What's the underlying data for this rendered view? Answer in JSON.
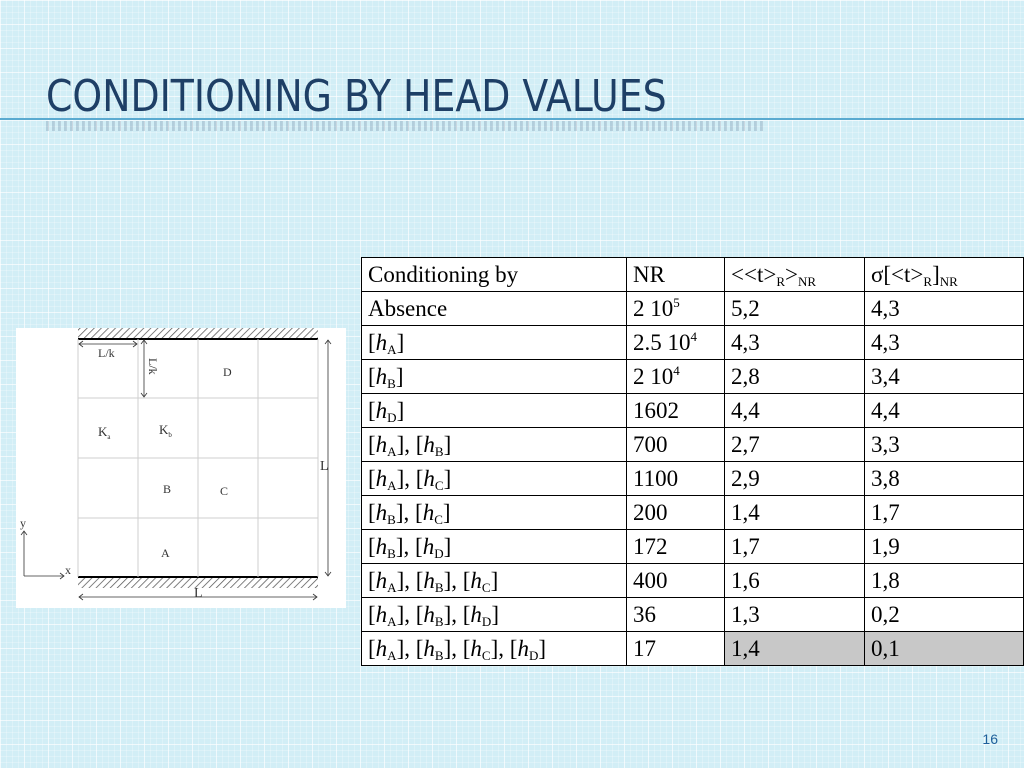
{
  "title": "Conditioning by head values",
  "page_number": "16",
  "figure": {
    "labels": {
      "top_width": "L/k",
      "side_width": "L/k",
      "height": "L",
      "width": "L",
      "region_D": "D",
      "region_C": "C",
      "region_B": "B",
      "region_A": "A",
      "ka_main": "K",
      "ka_sub": "a",
      "kb_main": "K",
      "kb_sub": "b",
      "axis_x": "x",
      "axis_y": "y"
    }
  },
  "table": {
    "header": {
      "col1": "Conditioning by",
      "col2": "NR",
      "col3_pre": "<<t>",
      "col3_sub1": "R",
      "col3_mid": ">",
      "col3_sub2": "NR",
      "col4_pre": "σ[<t>",
      "col4_sub1": "R",
      "col4_mid": "]",
      "col4_sub2": "NR"
    },
    "rows": [
      {
        "cond": [],
        "cond_text": "Absence",
        "nr_base": "2 10",
        "nr_exp": "5",
        "mean": "5,2",
        "sigma": "4,3"
      },
      {
        "cond": [
          "A"
        ],
        "nr_base": "2.5 10",
        "nr_exp": "4",
        "mean": "4,3",
        "sigma": "4,3"
      },
      {
        "cond": [
          "B"
        ],
        "nr_base": "2 10",
        "nr_exp": "4",
        "mean": "2,8",
        "sigma": "3,4"
      },
      {
        "cond": [
          "D"
        ],
        "nr_base": "1602",
        "nr_exp": "",
        "mean": "4,4",
        "sigma": "4,4"
      },
      {
        "cond": [
          "A",
          "B"
        ],
        "nr_base": "700",
        "nr_exp": "",
        "mean": "2,7",
        "sigma": "3,3"
      },
      {
        "cond": [
          "A",
          "C"
        ],
        "nr_base": "1100",
        "nr_exp": "",
        "mean": "2,9",
        "sigma": "3,8"
      },
      {
        "cond": [
          "B",
          "C"
        ],
        "nr_base": "200",
        "nr_exp": "",
        "mean": "1,4",
        "sigma": "1,7"
      },
      {
        "cond": [
          "B",
          "D"
        ],
        "nr_base": "172",
        "nr_exp": "",
        "mean": "1,7",
        "sigma": "1,9"
      },
      {
        "cond": [
          "A",
          "B",
          "C"
        ],
        "nr_base": "400",
        "nr_exp": "",
        "mean": "1,6",
        "sigma": "1,8"
      },
      {
        "cond": [
          "A",
          "B",
          "D"
        ],
        "nr_base": "36",
        "nr_exp": "",
        "mean": "1,3",
        "sigma": "0,2"
      },
      {
        "cond": [
          "A",
          "B",
          "C",
          "D"
        ],
        "nr_base": "17",
        "nr_exp": "",
        "mean": "1,4",
        "sigma": "0,1",
        "shaded": true
      }
    ],
    "cond_symbol": "h"
  }
}
